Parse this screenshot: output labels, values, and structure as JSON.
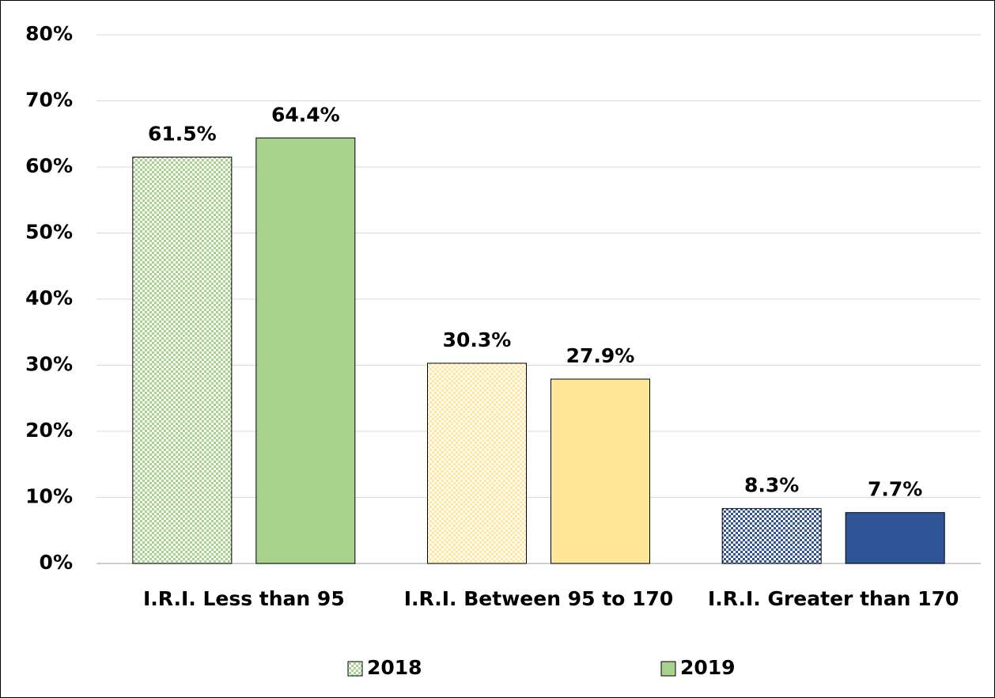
{
  "chart_data": {
    "type": "bar",
    "categories": [
      "I.R.I. Less than 95",
      "I.R.I. Between 95 to 170",
      "I.R.I. Greater than 170"
    ],
    "series": [
      {
        "name": "2018",
        "colors": [
          "#a9d18e",
          "#ffe699",
          "#2f5597"
        ],
        "pattern": "checker",
        "values": [
          61.5,
          30.3,
          8.3
        ],
        "value_labels": [
          "61.5%",
          "30.3%",
          "8.3%"
        ]
      },
      {
        "name": "2019",
        "colors": [
          "#a9d18e",
          "#ffe699",
          "#2f5597"
        ],
        "values": [
          64.4,
          27.9,
          7.7
        ],
        "value_labels": [
          "64.4%",
          "27.9%",
          "7.7%"
        ]
      }
    ],
    "ylim": [
      0,
      80
    ],
    "yticks": [
      {
        "value": 0,
        "label": "0%"
      },
      {
        "value": 10,
        "label": "10%"
      },
      {
        "value": 20,
        "label": "20%"
      },
      {
        "value": 30,
        "label": "30%"
      },
      {
        "value": 40,
        "label": "40%"
      },
      {
        "value": 50,
        "label": "50%"
      },
      {
        "value": 60,
        "label": "60%"
      },
      {
        "value": 70,
        "label": "70%"
      },
      {
        "value": 80,
        "label": "80%"
      }
    ],
    "grid": true,
    "legend": "bottom"
  }
}
